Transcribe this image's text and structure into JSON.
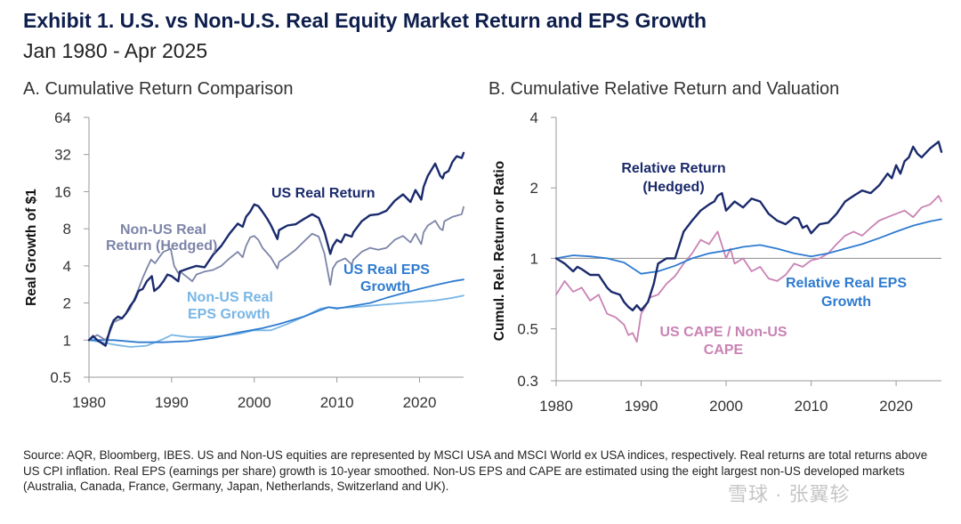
{
  "title": "Exhibit 1. U.S. vs Non-U.S. Real Equity Market Return and EPS Growth",
  "subtitle": "Jan 1980 - Apr 2025",
  "source": "Source: AQR, Bloomberg, IBES. US and Non-US equities are represented by MSCI USA and MSCI World ex USA indices, respectively. Real returns are total returns above US CPI inflation. Real EPS (earnings per share) growth is 10-year smoothed. Non-US EPS and CAPE are estimated using the eight largest non-US developed markets (Australia, Canada, France, Germany, Japan, Netherlands, Switzerland and UK).",
  "watermark": "雪球 · 张翼轸",
  "colors": {
    "navy": "#1a2a6c",
    "gray_blue": "#7c84a8",
    "mid_blue": "#2e7bd0",
    "light_blue": "#78b6e6",
    "pink": "#c982b4",
    "axis": "#9a9a9a"
  },
  "chart_data": [
    {
      "type": "line",
      "title": "A. Cumulative Return Comparison",
      "xlabel": "",
      "ylabel": "Real Growth of $1",
      "xlim": [
        1980,
        2025.33
      ],
      "ylim": [
        0.5,
        64
      ],
      "y_scale": "log2",
      "x_ticks": [
        1980,
        1990,
        2000,
        2010,
        2020
      ],
      "y_ticks": [
        0.5,
        1,
        2,
        4,
        8,
        16,
        32,
        64
      ],
      "y_tick_labels": [
        "0.5",
        "1",
        "2",
        "4",
        "8",
        "16",
        "32",
        "64"
      ],
      "grid": false,
      "series": [
        {
          "name": "US Real Return",
          "color": "#1a2a6c",
          "width": 2.4,
          "x": [
            1980,
            1980.5,
            1981,
            1981.5,
            1982,
            1982.6,
            1983,
            1983.5,
            1984,
            1984.5,
            1985,
            1985.5,
            1986,
            1986.5,
            1987,
            1987.6,
            1987.9,
            1988.5,
            1989,
            1989.5,
            1990,
            1990.8,
            1991,
            1991.5,
            1992,
            1993,
            1994,
            1995,
            1996,
            1997,
            1998,
            1998.6,
            1999,
            1999.5,
            2000,
            2000.5,
            2001,
            2001.5,
            2002,
            2002.8,
            2003,
            2004,
            2005,
            2006,
            2007,
            2007.8,
            2008.5,
            2009.2,
            2009.5,
            2010,
            2010.5,
            2011,
            2011.8,
            2012,
            2013,
            2014,
            2015,
            2016,
            2017,
            2018,
            2018.9,
            2019.5,
            2020.2,
            2020.5,
            2021,
            2021.9,
            2022.5,
            2022.8,
            2023,
            2023.5,
            2024,
            2024.5,
            2025.1,
            2025.33
          ],
          "values": [
            1.0,
            1.08,
            1.0,
            0.95,
            0.9,
            1.25,
            1.45,
            1.55,
            1.5,
            1.65,
            1.9,
            2.1,
            2.5,
            2.6,
            3.0,
            3.3,
            2.5,
            2.7,
            3.0,
            3.4,
            3.3,
            3.0,
            3.6,
            3.7,
            3.8,
            4.0,
            3.9,
            4.9,
            5.8,
            7.3,
            8.8,
            8.3,
            10.0,
            11.0,
            12.6,
            12.2,
            11.0,
            9.8,
            8.6,
            6.6,
            7.8,
            8.5,
            8.7,
            9.6,
            10.5,
            9.8,
            7.5,
            5.0,
            5.8,
            6.5,
            6.2,
            7.2,
            6.9,
            7.5,
            9.2,
            10.3,
            10.5,
            11.2,
            13.5,
            15.2,
            13.2,
            16.5,
            13.8,
            17.5,
            21.5,
            27.0,
            21.5,
            20.5,
            22.5,
            23.5,
            28.0,
            31.0,
            30.0,
            33.0
          ]
        },
        {
          "name": "Non-US Real Return (Hedged)",
          "color": "#7c84a8",
          "width": 1.8,
          "x": [
            1980,
            1980.5,
            1981,
            1981.5,
            1982,
            1982.5,
            1983,
            1984,
            1985,
            1986,
            1986.5,
            1987,
            1987.5,
            1988,
            1988.5,
            1989,
            1989.9,
            1990.3,
            1990.8,
            1991,
            1992,
            1992.5,
            1993,
            1994,
            1995,
            1996,
            1997,
            1998,
            1998.6,
            1999,
            1999.5,
            2000,
            2000.5,
            2001,
            2002,
            2002.8,
            2003,
            2004,
            2005,
            2006,
            2007,
            2007.8,
            2008.5,
            2009.2,
            2009.5,
            2010,
            2011,
            2011.8,
            2012,
            2013,
            2014,
            2015,
            2016,
            2017,
            2018,
            2018.9,
            2019.5,
            2020.2,
            2020.5,
            2021,
            2021.9,
            2022.5,
            2022.8,
            2023,
            2024,
            2025.1,
            2025.33
          ],
          "values": [
            1.0,
            1.05,
            1.1,
            1.05,
            1.0,
            1.15,
            1.4,
            1.5,
            1.8,
            2.6,
            3.2,
            3.8,
            4.5,
            4.2,
            4.7,
            5.2,
            5.5,
            4.0,
            3.5,
            3.6,
            3.2,
            3.0,
            3.4,
            3.6,
            3.7,
            4.0,
            4.6,
            5.2,
            4.7,
            5.8,
            6.8,
            7.0,
            6.5,
            5.6,
            4.7,
            3.8,
            4.3,
            4.8,
            5.4,
            6.3,
            7.3,
            6.9,
            5.0,
            2.8,
            3.8,
            4.3,
            4.6,
            4.1,
            4.5,
            5.2,
            5.6,
            5.4,
            5.6,
            6.5,
            7.0,
            6.2,
            7.3,
            6.0,
            7.5,
            8.5,
            9.3,
            8.0,
            7.8,
            9.2,
            10.0,
            10.5,
            12.0
          ]
        },
        {
          "name": "US Real EPS Growth",
          "color": "#2e7bd0",
          "width": 1.8,
          "x": [
            1980,
            1983,
            1986,
            1989,
            1992,
            1995,
            1998,
            2001,
            2003,
            2006,
            2008,
            2009,
            2010,
            2012,
            2014,
            2016,
            2018,
            2020,
            2022,
            2024,
            2025.33
          ],
          "values": [
            1.0,
            1.0,
            0.96,
            0.96,
            0.98,
            1.04,
            1.15,
            1.25,
            1.35,
            1.55,
            1.75,
            1.85,
            1.8,
            1.9,
            2.0,
            2.2,
            2.4,
            2.6,
            2.8,
            3.0,
            3.1
          ]
        },
        {
          "name": "Non-US Real EPS Growth",
          "color": "#78b6e6",
          "width": 1.8,
          "x": [
            1980,
            1983,
            1985,
            1987,
            1989,
            1990,
            1992,
            1994,
            1996,
            1998,
            2000,
            2002,
            2004,
            2006,
            2008,
            2009,
            2010,
            2012,
            2014,
            2016,
            2018,
            2020,
            2022,
            2024,
            2025.33
          ],
          "values": [
            1.0,
            0.92,
            0.88,
            0.9,
            1.02,
            1.1,
            1.06,
            1.06,
            1.08,
            1.12,
            1.2,
            1.2,
            1.35,
            1.55,
            1.8,
            1.85,
            1.82,
            1.85,
            1.9,
            1.95,
            2.0,
            2.05,
            2.1,
            2.2,
            2.3
          ]
        }
      ],
      "annotations": [
        {
          "text": "US Real Return",
          "color": "#1a2a6c"
        },
        {
          "text": "Non-US Real",
          "color": "#7c84a8"
        },
        {
          "text": "Return (Hedged)",
          "color": "#7c84a8"
        },
        {
          "text": "US Real EPS",
          "color": "#2e7bd0"
        },
        {
          "text": "Growth",
          "color": "#2e7bd0"
        },
        {
          "text": "Non-US Real",
          "color": "#78b6e6"
        },
        {
          "text": "EPS Growth",
          "color": "#78b6e6"
        }
      ]
    },
    {
      "type": "line",
      "title": "B. Cumulative Relative Return and Valuation",
      "xlabel": "",
      "ylabel": "Cumul. Rel. Return or Ratio",
      "xlim": [
        1980,
        2025.33
      ],
      "ylim": [
        0.3,
        4
      ],
      "y_scale": "log",
      "x_ticks": [
        1980,
        1990,
        2000,
        2010,
        2020
      ],
      "y_ticks": [
        0.3,
        0.5,
        1,
        2,
        4
      ],
      "y_tick_labels": [
        "0.3",
        "0.5",
        "1",
        "2",
        "4"
      ],
      "reference_line": 1,
      "grid": false,
      "series": [
        {
          "name": "Relative Return (Hedged)",
          "color": "#1a2a6c",
          "width": 2.4,
          "x": [
            1980,
            1981,
            1982,
            1982.5,
            1983,
            1984,
            1985,
            1986,
            1986.5,
            1987.5,
            1988,
            1988.5,
            1989,
            1989.5,
            1990,
            1990.8,
            1991.5,
            1992,
            1993,
            1994,
            1995,
            1996,
            1997,
            1998,
            1998.6,
            1999,
            1999.5,
            2000,
            2001,
            2002,
            2003,
            2004,
            2005,
            2006,
            2007,
            2008,
            2008.5,
            2009,
            2009.5,
            2010,
            2011,
            2012,
            2013,
            2014,
            2015,
            2016,
            2017,
            2018,
            2019,
            2019.5,
            2020,
            2020.5,
            2021,
            2021.5,
            2022,
            2022.5,
            2023,
            2024,
            2025,
            2025.33
          ],
          "values": [
            1.0,
            0.95,
            0.88,
            0.92,
            0.9,
            0.85,
            0.85,
            0.75,
            0.72,
            0.7,
            0.65,
            0.62,
            0.6,
            0.63,
            0.6,
            0.65,
            0.78,
            0.95,
            1.0,
            1.0,
            1.3,
            1.45,
            1.6,
            1.7,
            1.75,
            1.85,
            1.9,
            1.6,
            1.75,
            1.65,
            1.8,
            1.75,
            1.55,
            1.45,
            1.4,
            1.5,
            1.48,
            1.35,
            1.38,
            1.28,
            1.4,
            1.42,
            1.55,
            1.75,
            1.85,
            1.95,
            1.9,
            2.05,
            2.3,
            2.2,
            2.5,
            2.3,
            2.6,
            2.7,
            3.0,
            2.8,
            2.7,
            2.95,
            3.15,
            2.85
          ]
        },
        {
          "name": "Relative Real EPS Growth",
          "color": "#2e7bd0",
          "width": 1.8,
          "x": [
            1980,
            1982,
            1984,
            1986,
            1988,
            1990,
            1992,
            1994,
            1996,
            1998,
            2000,
            2002,
            2004,
            2006,
            2008,
            2010,
            2012,
            2014,
            2016,
            2018,
            2020,
            2022,
            2024,
            2025.33
          ],
          "values": [
            1.0,
            1.03,
            1.02,
            1.0,
            0.96,
            0.86,
            0.88,
            0.93,
            1.0,
            1.05,
            1.08,
            1.12,
            1.14,
            1.1,
            1.05,
            1.02,
            1.05,
            1.1,
            1.15,
            1.22,
            1.3,
            1.38,
            1.44,
            1.47
          ]
        },
        {
          "name": "US CAPE / Non-US CAPE",
          "color": "#c982b4",
          "width": 1.8,
          "x": [
            1980,
            1981,
            1982,
            1983,
            1984,
            1985,
            1986,
            1987,
            1988,
            1988.5,
            1989,
            1989.5,
            1990,
            1990.5,
            1991,
            1992,
            1993,
            1994,
            1995,
            1996,
            1997,
            1998,
            1999,
            2000,
            2000.5,
            2001,
            2002,
            2003,
            2004,
            2005,
            2006,
            2007,
            2008,
            2009,
            2010,
            2011,
            2012,
            2013,
            2014,
            2015,
            2016,
            2017,
            2018,
            2019,
            2020,
            2021,
            2022,
            2023,
            2024,
            2025,
            2025.33
          ],
          "values": [
            0.7,
            0.8,
            0.72,
            0.75,
            0.66,
            0.7,
            0.58,
            0.56,
            0.52,
            0.47,
            0.48,
            0.44,
            0.58,
            0.62,
            0.68,
            0.7,
            0.78,
            0.84,
            0.95,
            1.05,
            1.2,
            1.15,
            1.3,
            1.0,
            1.1,
            0.95,
            1.0,
            0.88,
            0.92,
            0.82,
            0.8,
            0.85,
            0.95,
            0.92,
            0.98,
            1.0,
            1.05,
            1.15,
            1.25,
            1.3,
            1.25,
            1.35,
            1.45,
            1.5,
            1.55,
            1.6,
            1.5,
            1.65,
            1.7,
            1.85,
            1.75
          ]
        }
      ],
      "annotations": [
        {
          "text": "Relative Return",
          "color": "#1a2a6c"
        },
        {
          "text": "(Hedged)",
          "color": "#1a2a6c"
        },
        {
          "text": "Relative Real EPS",
          "color": "#2e7bd0"
        },
        {
          "text": "Growth",
          "color": "#2e7bd0"
        },
        {
          "text": "US CAPE / Non-US",
          "color": "#c982b4"
        },
        {
          "text": "CAPE",
          "color": "#c982b4"
        }
      ]
    }
  ]
}
